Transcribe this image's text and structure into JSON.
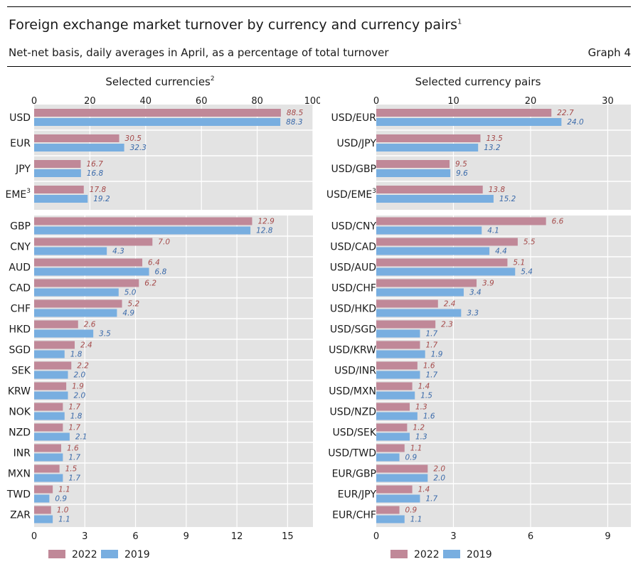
{
  "header": {
    "title": "Foreign exchange market turnover by currency and currency pairs",
    "title_note": "1",
    "subtitle": "Net-net basis, daily averages in April, as a percentage of total turnover",
    "graph_label": "Graph 4"
  },
  "colors": {
    "s2022": "#c08898",
    "s2019": "#78aee0",
    "panel_bg": "#e3e3e3",
    "label2022": "#a54a4a",
    "label2019": "#3a6aaa"
  },
  "chart_data": [
    {
      "type": "bar",
      "orientation": "horizontal",
      "title": "Selected currencies",
      "title_note": "2",
      "series_names": [
        "2022",
        "2019"
      ],
      "top": {
        "xlim": [
          0,
          100
        ],
        "ticks": [
          "0",
          "20",
          "40",
          "60",
          "80",
          "100"
        ],
        "tick_values": [
          0,
          20,
          40,
          60,
          80,
          100
        ],
        "categories": [
          {
            "label": "USD",
            "note": "",
            "v2022": 88.5,
            "v2019": 88.3,
            "t2022": "88.5",
            "t2019": "88.3"
          },
          {
            "label": "EUR",
            "note": "",
            "v2022": 30.5,
            "v2019": 32.3,
            "t2022": "30.5",
            "t2019": "32.3"
          },
          {
            "label": "JPY",
            "note": "",
            "v2022": 16.7,
            "v2019": 16.8,
            "t2022": "16.7",
            "t2019": "16.8"
          },
          {
            "label": "EME",
            "note": "3",
            "v2022": 17.8,
            "v2019": 19.2,
            "t2022": "17.8",
            "t2019": "19.2"
          }
        ]
      },
      "bottom": {
        "xlim": [
          0,
          16.5
        ],
        "ticks": [
          "0",
          "3",
          "6",
          "9",
          "12",
          "15"
        ],
        "tick_values": [
          0,
          3,
          6,
          9,
          12,
          15
        ],
        "categories": [
          {
            "label": "GBP",
            "v2022": 12.9,
            "v2019": 12.8,
            "t2022": "12.9",
            "t2019": "12.8"
          },
          {
            "label": "CNY",
            "v2022": 7.0,
            "v2019": 4.3,
            "t2022": "7.0",
            "t2019": "4.3"
          },
          {
            "label": "AUD",
            "v2022": 6.4,
            "v2019": 6.8,
            "t2022": "6.4",
            "t2019": "6.8"
          },
          {
            "label": "CAD",
            "v2022": 6.2,
            "v2019": 5.0,
            "t2022": "6.2",
            "t2019": "5.0"
          },
          {
            "label": "CHF",
            "v2022": 5.2,
            "v2019": 4.9,
            "t2022": "5.2",
            "t2019": "4.9"
          },
          {
            "label": "HKD",
            "v2022": 2.6,
            "v2019": 3.5,
            "t2022": "2.6",
            "t2019": "3.5"
          },
          {
            "label": "SGD",
            "v2022": 2.4,
            "v2019": 1.8,
            "t2022": "2.4",
            "t2019": "1.8"
          },
          {
            "label": "SEK",
            "v2022": 2.2,
            "v2019": 2.0,
            "t2022": "2.2",
            "t2019": "2.0"
          },
          {
            "label": "KRW",
            "v2022": 1.9,
            "v2019": 2.0,
            "t2022": "1.9",
            "t2019": "2.0"
          },
          {
            "label": "NOK",
            "v2022": 1.7,
            "v2019": 1.8,
            "t2022": "1.7",
            "t2019": "1.8"
          },
          {
            "label": "NZD",
            "v2022": 1.7,
            "v2019": 2.1,
            "t2022": "1.7",
            "t2019": "2.1"
          },
          {
            "label": "INR",
            "v2022": 1.6,
            "v2019": 1.7,
            "t2022": "1.6",
            "t2019": "1.7"
          },
          {
            "label": "MXN",
            "v2022": 1.5,
            "v2019": 1.7,
            "t2022": "1.5",
            "t2019": "1.7"
          },
          {
            "label": "TWD",
            "v2022": 1.1,
            "v2019": 0.9,
            "t2022": "1.1",
            "t2019": "0.9"
          },
          {
            "label": "ZAR",
            "v2022": 1.0,
            "v2019": 1.1,
            "t2022": "1.0",
            "t2019": "1.1"
          }
        ]
      },
      "legend": [
        "2022",
        "2019"
      ]
    },
    {
      "type": "bar",
      "orientation": "horizontal",
      "title": "Selected currency pairs",
      "title_note": "",
      "series_names": [
        "2022",
        "2019"
      ],
      "top": {
        "xlim": [
          0,
          33
        ],
        "ticks": [
          "0",
          "10",
          "20",
          "30"
        ],
        "tick_values": [
          0,
          10,
          20,
          30
        ],
        "categories": [
          {
            "label": "USD/EUR",
            "note": "",
            "v2022": 22.7,
            "v2019": 24.0,
            "t2022": "22.7",
            "t2019": "24.0"
          },
          {
            "label": "USD/JPY",
            "note": "",
            "v2022": 13.5,
            "v2019": 13.2,
            "t2022": "13.5",
            "t2019": "13.2"
          },
          {
            "label": "USD/GBP",
            "note": "",
            "v2022": 9.5,
            "v2019": 9.6,
            "t2022": "9.5",
            "t2019": "9.6"
          },
          {
            "label": "USD/EME",
            "note": "3",
            "v2022": 13.8,
            "v2019": 15.2,
            "t2022": "13.8",
            "t2019": "15.2"
          }
        ]
      },
      "bottom": {
        "xlim": [
          0,
          9.9
        ],
        "ticks": [
          "0",
          "3",
          "6",
          "9"
        ],
        "tick_values": [
          0,
          3,
          6,
          9
        ],
        "categories": [
          {
            "label": "USD/CNY",
            "v2022": 6.6,
            "v2019": 4.1,
            "t2022": "6.6",
            "t2019": "4.1"
          },
          {
            "label": "USD/CAD",
            "v2022": 5.5,
            "v2019": 4.4,
            "t2022": "5.5",
            "t2019": "4.4"
          },
          {
            "label": "USD/AUD",
            "v2022": 5.1,
            "v2019": 5.4,
            "t2022": "5.1",
            "t2019": "5.4"
          },
          {
            "label": "USD/CHF",
            "v2022": 3.9,
            "v2019": 3.4,
            "t2022": "3.9",
            "t2019": "3.4"
          },
          {
            "label": "USD/HKD",
            "v2022": 2.4,
            "v2019": 3.3,
            "t2022": "2.4",
            "t2019": "3.3"
          },
          {
            "label": "USD/SGD",
            "v2022": 2.3,
            "v2019": 1.7,
            "t2022": "2.3",
            "t2019": "1.7"
          },
          {
            "label": "USD/KRW",
            "v2022": 1.7,
            "v2019": 1.9,
            "t2022": "1.7",
            "t2019": "1.9"
          },
          {
            "label": "USD/INR",
            "v2022": 1.6,
            "v2019": 1.7,
            "t2022": "1.6",
            "t2019": "1.7"
          },
          {
            "label": "USD/MXN",
            "v2022": 1.4,
            "v2019": 1.5,
            "t2022": "1.4",
            "t2019": "1.5"
          },
          {
            "label": "USD/NZD",
            "v2022": 1.3,
            "v2019": 1.6,
            "t2022": "1.3",
            "t2019": "1.6"
          },
          {
            "label": "USD/SEK",
            "v2022": 1.2,
            "v2019": 1.3,
            "t2022": "1.2",
            "t2019": "1.3"
          },
          {
            "label": "USD/TWD",
            "v2022": 1.1,
            "v2019": 0.9,
            "t2022": "1.1",
            "t2019": "0.9"
          },
          {
            "label": "EUR/GBP",
            "v2022": 2.0,
            "v2019": 2.0,
            "t2022": "2.0",
            "t2019": "2.0"
          },
          {
            "label": "EUR/JPY",
            "v2022": 1.4,
            "v2019": 1.7,
            "t2022": "1.4",
            "t2019": "1.7"
          },
          {
            "label": "EUR/CHF",
            "v2022": 0.9,
            "v2019": 1.1,
            "t2022": "0.9",
            "t2019": "1.1"
          }
        ]
      },
      "legend": [
        "2022",
        "2019"
      ]
    }
  ]
}
